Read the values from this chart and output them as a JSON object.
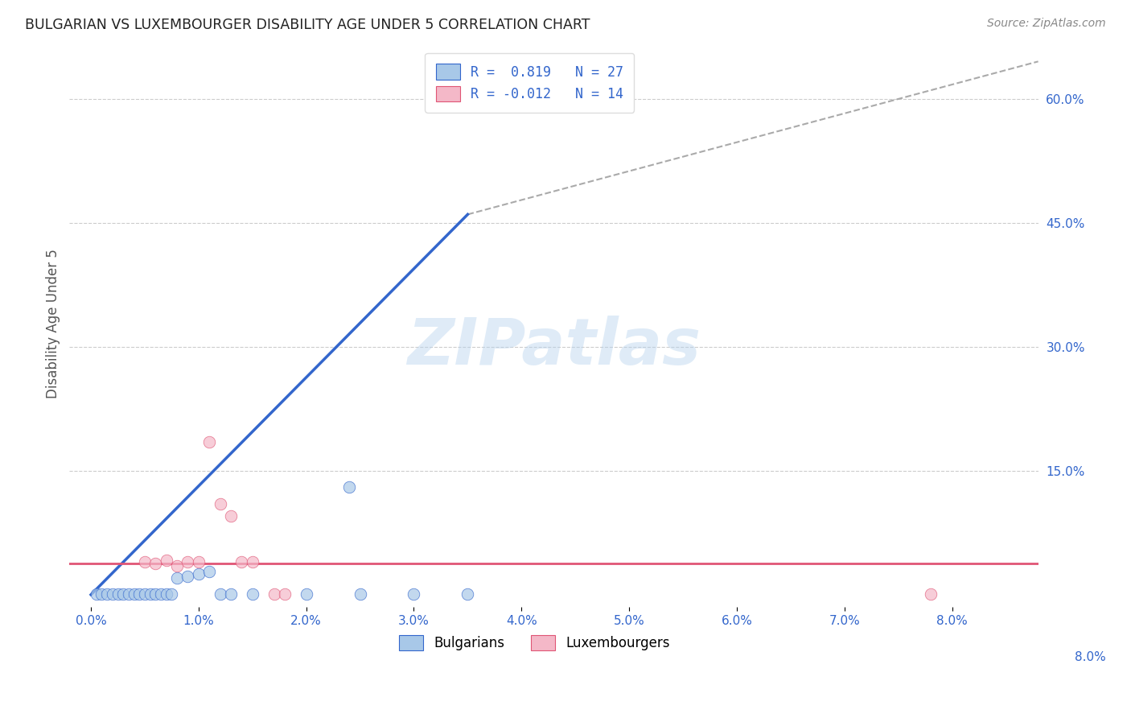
{
  "title": "BULGARIAN VS LUXEMBOURGER DISABILITY AGE UNDER 5 CORRELATION CHART",
  "source": "Source: ZipAtlas.com",
  "ylabel": "Disability Age Under 5",
  "bg_color": "#ffffff",
  "grid_color": "#cccccc",
  "watermark": "ZIPatlas",
  "legend_R_blue": "0.819",
  "legend_N_blue": "27",
  "legend_R_pink": "-0.012",
  "legend_N_pink": "14",
  "blue_color": "#a8c8e8",
  "pink_color": "#f4b8c8",
  "blue_line_color": "#3366cc",
  "pink_line_color": "#e05575",
  "blue_scatter": [
    [
      0.0005,
      0.001
    ],
    [
      0.001,
      0.001
    ],
    [
      0.0015,
      0.001
    ],
    [
      0.002,
      0.001
    ],
    [
      0.0025,
      0.001
    ],
    [
      0.003,
      0.001
    ],
    [
      0.0035,
      0.001
    ],
    [
      0.004,
      0.001
    ],
    [
      0.0045,
      0.001
    ],
    [
      0.005,
      0.001
    ],
    [
      0.0055,
      0.001
    ],
    [
      0.006,
      0.001
    ],
    [
      0.0065,
      0.001
    ],
    [
      0.007,
      0.001
    ],
    [
      0.0075,
      0.001
    ],
    [
      0.008,
      0.02
    ],
    [
      0.009,
      0.022
    ],
    [
      0.01,
      0.025
    ],
    [
      0.011,
      0.028
    ],
    [
      0.012,
      0.001
    ],
    [
      0.013,
      0.001
    ],
    [
      0.015,
      0.001
    ],
    [
      0.02,
      0.001
    ],
    [
      0.025,
      0.001
    ],
    [
      0.03,
      0.001
    ],
    [
      0.024,
      0.13
    ],
    [
      0.035,
      0.001
    ]
  ],
  "pink_scatter": [
    [
      0.005,
      0.04
    ],
    [
      0.006,
      0.038
    ],
    [
      0.007,
      0.042
    ],
    [
      0.008,
      0.035
    ],
    [
      0.009,
      0.04
    ],
    [
      0.01,
      0.04
    ],
    [
      0.011,
      0.185
    ],
    [
      0.012,
      0.11
    ],
    [
      0.013,
      0.095
    ],
    [
      0.014,
      0.04
    ],
    [
      0.015,
      0.04
    ],
    [
      0.017,
      0.001
    ],
    [
      0.018,
      0.001
    ],
    [
      0.078,
      0.001
    ]
  ],
  "xlim": [
    -0.002,
    0.088
  ],
  "ylim": [
    -0.015,
    0.67
  ],
  "xticks": [
    0.0,
    0.01,
    0.02,
    0.03,
    0.04,
    0.05,
    0.06,
    0.07,
    0.08
  ],
  "xtick_labels": [
    "0.0%",
    "1.0%",
    "2.0%",
    "3.0%",
    "4.0%",
    "5.0%",
    "6.0%",
    "7.0%",
    "8.0%"
  ],
  "yticks_right": [
    0.15,
    0.3,
    0.45,
    0.6
  ],
  "ytick_labels_right": [
    "15.0%",
    "30.0%",
    "45.0%",
    "60.0%"
  ],
  "ytick_label_bottom_right": "8.0%",
  "blue_line_x": [
    0.0,
    0.035
  ],
  "blue_line_y": [
    0.0,
    0.46
  ],
  "pink_fit_y": 0.038,
  "dashed_line_x": [
    0.035,
    0.088
  ],
  "dashed_line_y": [
    0.46,
    0.645
  ]
}
